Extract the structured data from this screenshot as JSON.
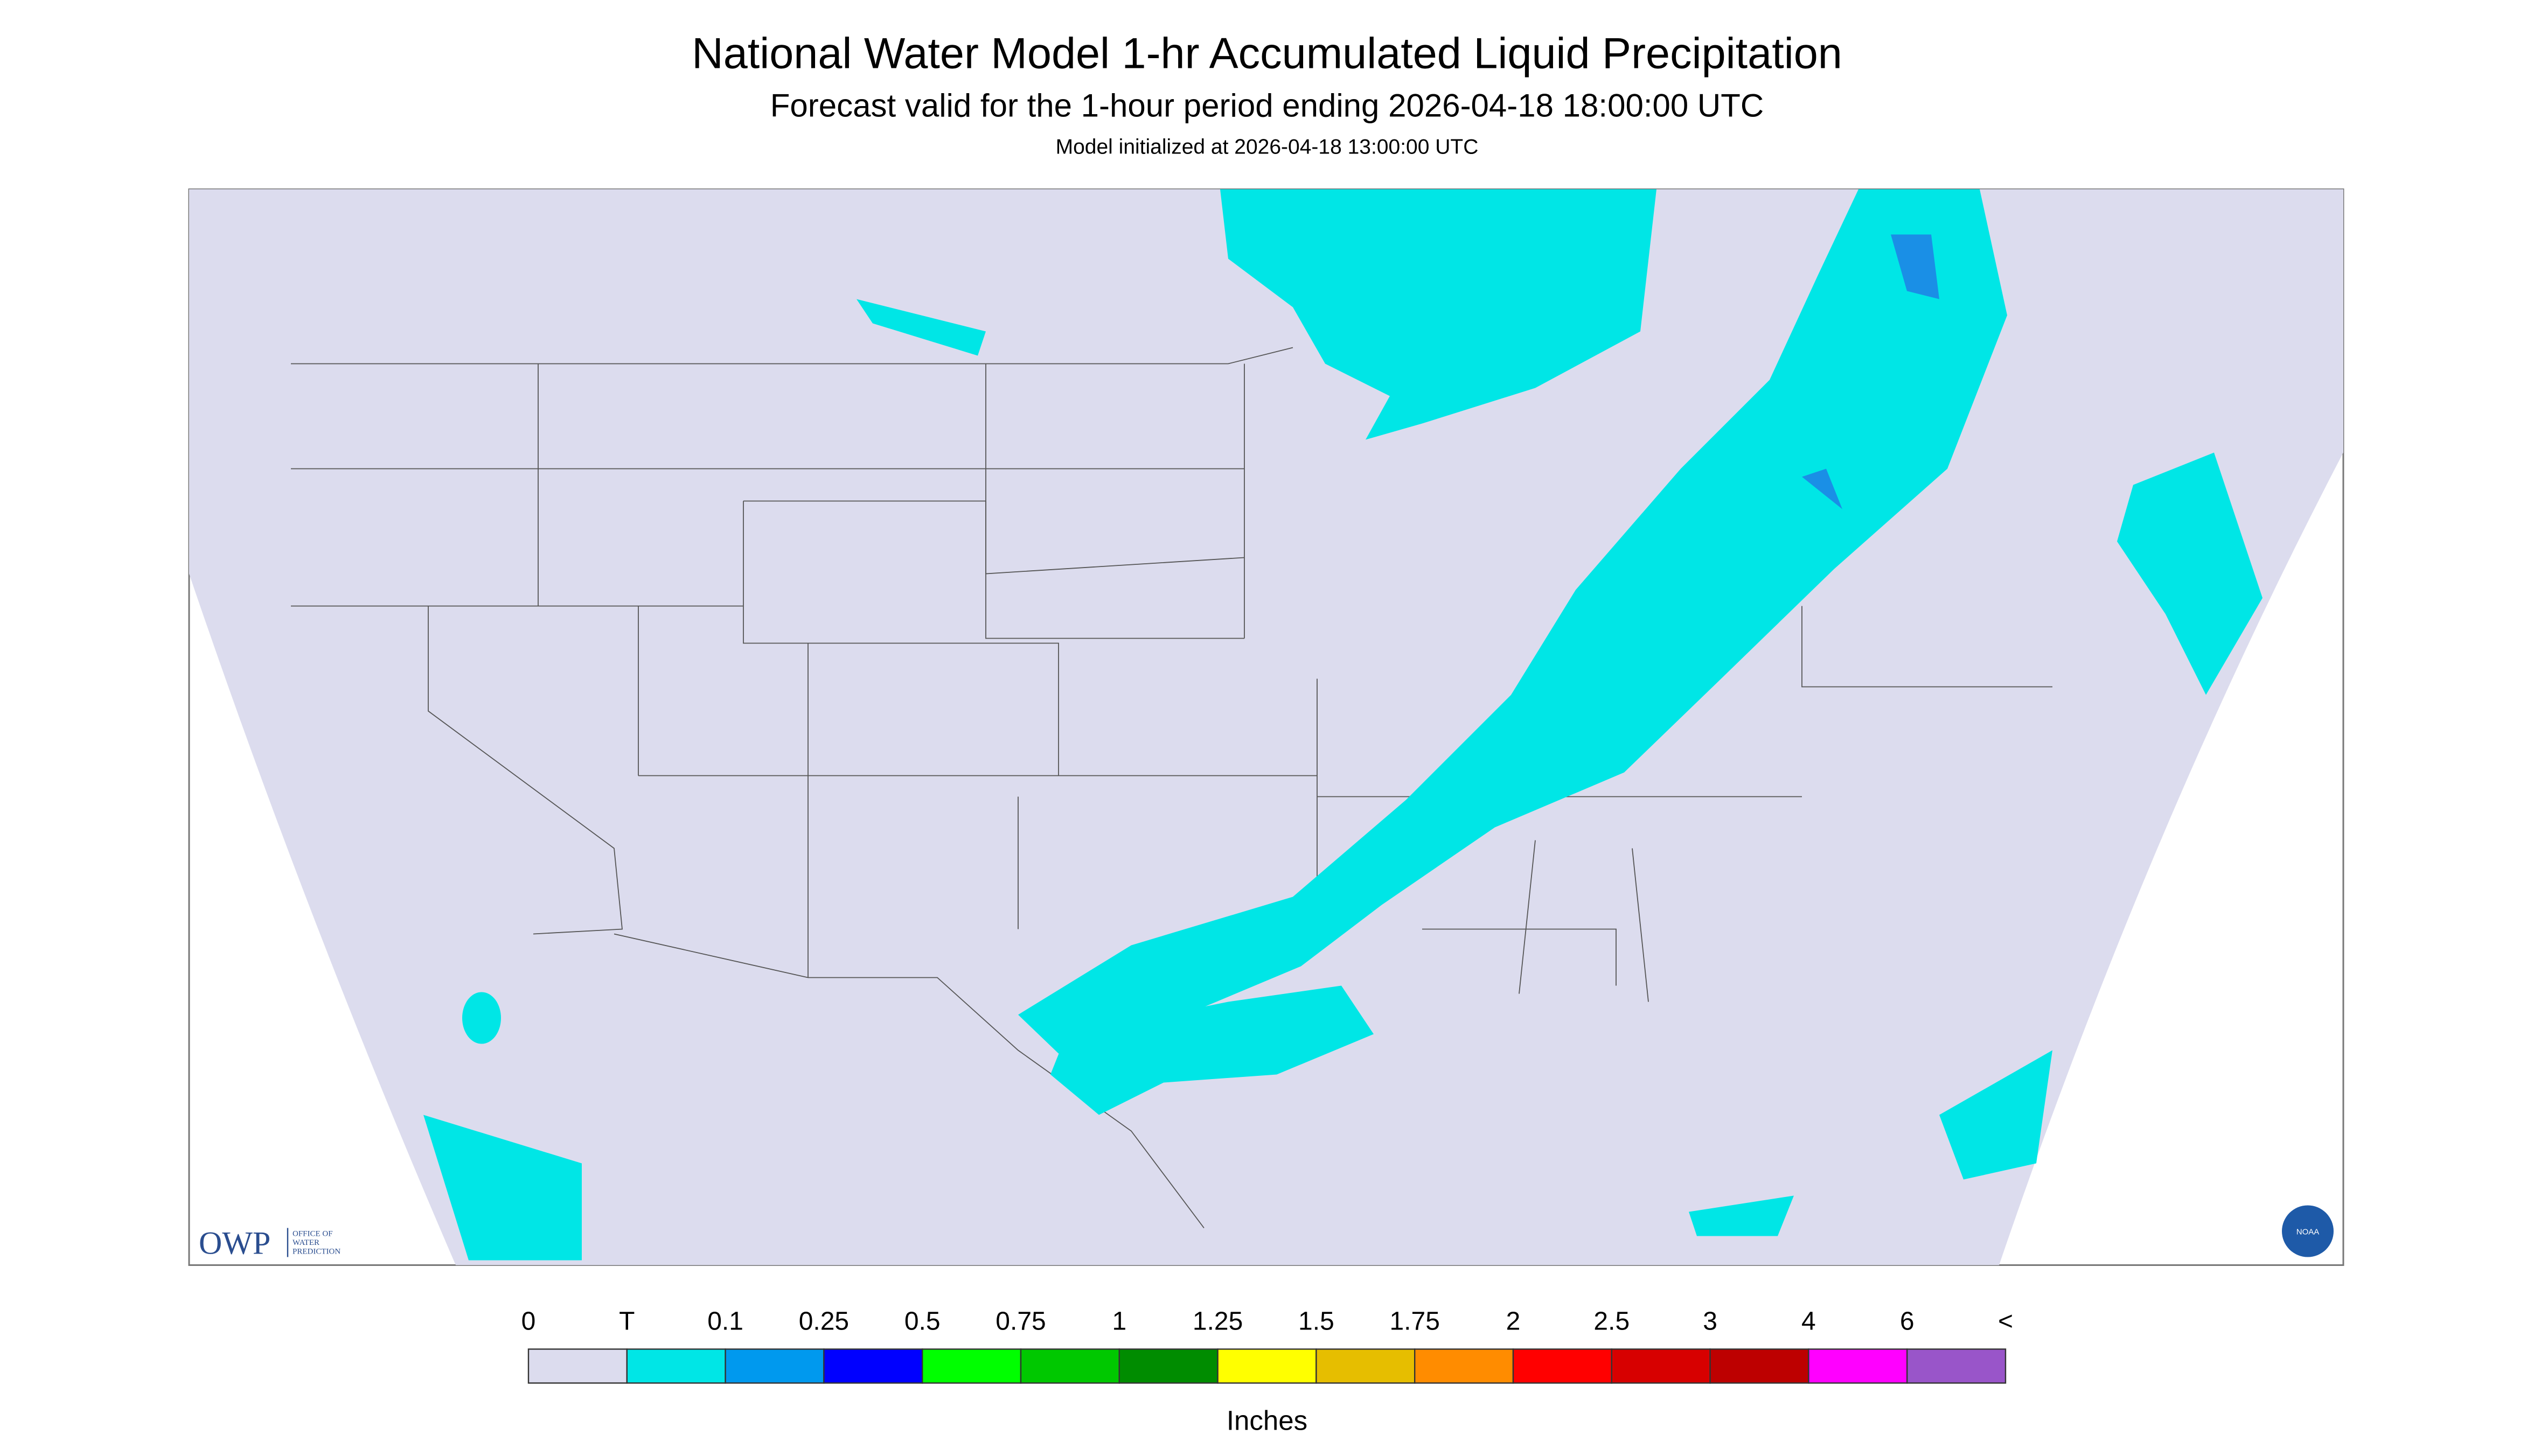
{
  "header": {
    "title": "National Water Model 1-hr Accumulated Liquid Precipitation",
    "subtitle": "Forecast valid for the 1-hour period ending 2026-04-18 18:00:00 UTC",
    "initialized": "Model initialized at 2026-04-18 13:00:00 UTC"
  },
  "legend": {
    "levels": [
      "0",
      "T",
      "0.1",
      "0.25",
      "0.5",
      "0.75",
      "1",
      "1.25",
      "1.5",
      "1.75",
      "2",
      "2.5",
      "3",
      "4",
      "6",
      "<"
    ],
    "colors": [
      "#dcdcee",
      "#00e6e6",
      "#0099ee",
      "#0000ff",
      "#00ff00",
      "#00c800",
      "#008c00",
      "#ffff00",
      "#e6be00",
      "#ff8c00",
      "#ff0000",
      "#d70000",
      "#bd0000",
      "#ff00ff",
      "#9955c9"
    ],
    "unit": "Inches"
  },
  "logos": {
    "owp": "OWP",
    "owp_text": [
      "OFFICE OF",
      "WATER",
      "PREDICTION"
    ],
    "noaa": "NOAA"
  }
}
